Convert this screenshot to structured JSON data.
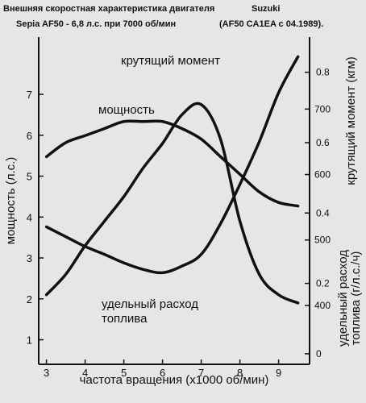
{
  "header": {
    "title_line1": "Внешняя скоростная характеристика двигателя",
    "brand": "Suzuki",
    "title_line2": "Sepia AF50 - 6,8 л.с. при 7000 об/мин",
    "model_code": "(AF50 CA1EA с  04.1989)."
  },
  "chart_data": {
    "type": "line",
    "title": "Внешняя скоростная характеристика двигателя Suzuki Sepia AF50 - 6,8 л.с. при 7000 об/мин (AF50 CA1EA с 04.1989).",
    "xlabel": "частота вращения (x1000 об/мин)",
    "ylabel_left": "мощность (л.с.)",
    "ylabel_right_torque": "крутящий момент (кгм)",
    "ylabel_right_fuel": "удельный расход топлива (г/л.с./ч)",
    "x_ticks": [
      "3",
      "4",
      "5",
      "6",
      "7",
      "8",
      "9"
    ],
    "y_left_ticks": [
      "1",
      "2",
      "3",
      "4",
      "5",
      "6",
      "7"
    ],
    "y_torque_ticks": [
      "0",
      "0.2",
      "0.4",
      "0.6",
      "0.8"
    ],
    "y_fuel_ticks": [
      "400",
      "500",
      "600",
      "700"
    ],
    "xlim": [
      2.8,
      9.8
    ],
    "ylim_left": [
      0.4,
      8.4
    ],
    "ylim_torque": [
      -0.03,
      0.9
    ],
    "ylim_fuel": [
      310,
      810
    ],
    "grid": false,
    "series": [
      {
        "name": "крутящий момент",
        "axis": "torque",
        "label": "крутящий момент",
        "x": [
          3.0,
          3.5,
          4.0,
          4.5,
          5.0,
          5.5,
          6.0,
          6.5,
          7.0,
          7.5,
          8.0,
          8.5,
          9.0,
          9.5
        ],
        "y": [
          0.56,
          0.6,
          0.62,
          0.64,
          0.66,
          0.66,
          0.66,
          0.64,
          0.61,
          0.56,
          0.51,
          0.46,
          0.43,
          0.42
        ]
      },
      {
        "name": "мощность",
        "axis": "left",
        "label": "мощность",
        "x": [
          3.0,
          3.5,
          4.0,
          4.5,
          5.0,
          5.5,
          6.0,
          6.5,
          7.0,
          7.5,
          8.0,
          8.5,
          9.0,
          9.5
        ],
        "y": [
          2.1,
          2.6,
          3.3,
          3.9,
          4.5,
          5.2,
          5.8,
          6.5,
          6.75,
          5.9,
          3.9,
          2.6,
          2.1,
          1.9
        ]
      },
      {
        "name": "удельный расход топлива",
        "axis": "fuel",
        "label": "удельный расход\nтоплива",
        "x": [
          3.0,
          3.5,
          4.0,
          4.5,
          5.0,
          5.5,
          6.0,
          6.5,
          7.0,
          7.5,
          8.0,
          8.5,
          9.0,
          9.5
        ],
        "y": [
          520,
          505,
          490,
          478,
          465,
          455,
          450,
          460,
          478,
          525,
          585,
          650,
          725,
          780
        ]
      }
    ]
  }
}
